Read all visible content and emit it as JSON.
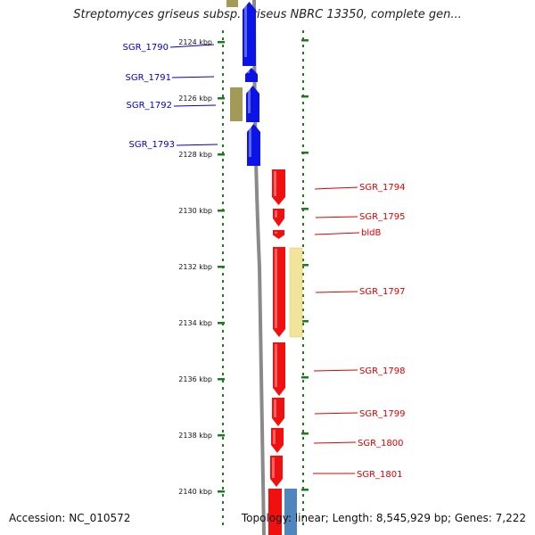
{
  "title": "Streptomyces griseus subsp. griseus NBRC 13350, complete gen...",
  "footer": {
    "accession": "Accession: NC_010572",
    "summary": "Topology: linear; Length: 8,545,929 bp; Genes: 7,222"
  },
  "colors": {
    "reverse_gene": "#0a14e6",
    "forward_gene": "#f01010",
    "olive_feature": "#a39a58",
    "pale_feature": "#f2e49a",
    "steel_feature": "#4f86bd",
    "axis_green": "#1d7a1d",
    "backbone": "#8a8a8a"
  },
  "axis_ticks": [
    {
      "label": "2124 kbp"
    },
    {
      "label": "2126 kbp"
    },
    {
      "label": "2128 kbp"
    },
    {
      "label": "2130 kbp"
    },
    {
      "label": "2132 kbp"
    },
    {
      "label": "2134 kbp"
    },
    {
      "label": "2136 kbp"
    },
    {
      "label": "2138 kbp"
    },
    {
      "label": "2140 kbp"
    }
  ],
  "genes": [
    {
      "name": "SGR_1790",
      "strand": "-"
    },
    {
      "name": "SGR_1791",
      "strand": "-"
    },
    {
      "name": "SGR_1792",
      "strand": "-"
    },
    {
      "name": "SGR_1793",
      "strand": "-"
    },
    {
      "name": "SGR_1794",
      "strand": "+"
    },
    {
      "name": "SGR_1795",
      "strand": "+"
    },
    {
      "name": "bldB",
      "strand": "+"
    },
    {
      "name": "SGR_1797",
      "strand": "+"
    },
    {
      "name": "SGR_1798",
      "strand": "+"
    },
    {
      "name": "SGR_1799",
      "strand": "+"
    },
    {
      "name": "SGR_1800",
      "strand": "+"
    },
    {
      "name": "SGR_1801",
      "strand": "+"
    }
  ]
}
